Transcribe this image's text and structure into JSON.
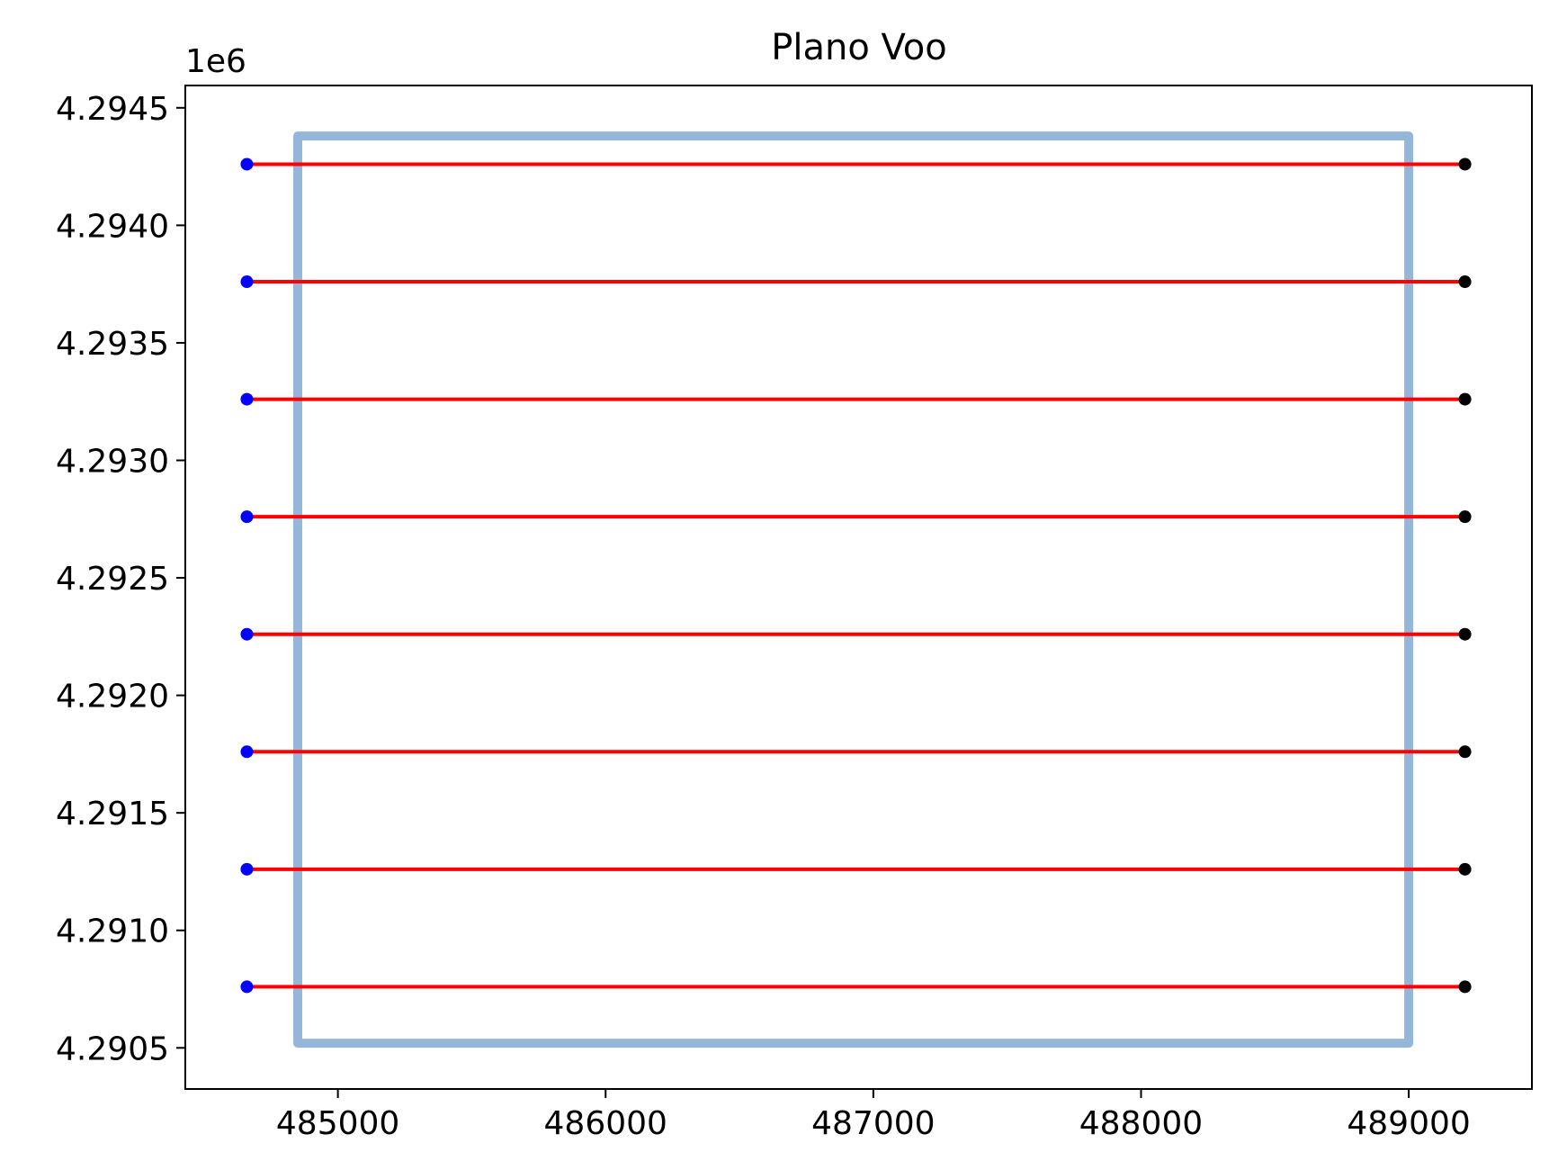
{
  "chart_data": {
    "type": "line",
    "title": "Plano Voo",
    "xlabel": "",
    "ylabel": "",
    "y_offset_label": "1e6",
    "xlim": [
      484430,
      489460
    ],
    "ylim": [
      4290325,
      4294595
    ],
    "x_ticks": [
      485000,
      486000,
      487000,
      488000,
      489000
    ],
    "x_tick_labels": [
      "485000",
      "486000",
      "487000",
      "488000",
      "489000"
    ],
    "y_ticks": [
      4290500,
      4291000,
      4291500,
      4292000,
      4292500,
      4293000,
      4293500,
      4294000,
      4294500
    ],
    "y_tick_labels": [
      "4.2905",
      "4.2910",
      "4.2915",
      "4.2920",
      "4.2925",
      "4.2930",
      "4.2935",
      "4.2940",
      "4.2945"
    ],
    "grid": false,
    "legend": "none",
    "boundary": {
      "color": "#94b6d9",
      "x": [
        484850,
        489000,
        489000,
        484850,
        484850
      ],
      "y": [
        4290520,
        4290520,
        4294380,
        4294380,
        4290520
      ]
    },
    "flight_lines": {
      "color": "#ff0000",
      "start_color": "#0000ff",
      "end_color": "#000000",
      "x_start": 484660,
      "x_end": 489210,
      "y": [
        4290760,
        4291260,
        4291760,
        4292260,
        4292760,
        4293260,
        4293760,
        4294260
      ]
    }
  }
}
